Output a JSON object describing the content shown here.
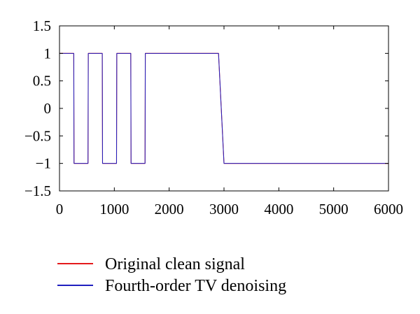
{
  "chart_data": {
    "type": "line",
    "title": "",
    "xlabel": "",
    "ylabel": "",
    "xlim": [
      0,
      6000
    ],
    "ylim": [
      -1.5,
      1.5
    ],
    "x_ticks": [
      0,
      1000,
      2000,
      3000,
      4000,
      5000,
      6000
    ],
    "x_tick_labels": [
      "0",
      "1000",
      "2000",
      "3000",
      "4000",
      "5000",
      "6000"
    ],
    "y_ticks": [
      1.5,
      1,
      0.5,
      0,
      -0.5,
      -1,
      -1.5
    ],
    "y_tick_labels": [
      "1.5",
      "1",
      "0.5",
      "0",
      "−0.5",
      "−1",
      "−1.5"
    ],
    "grid": false,
    "legend_position": "bottom",
    "series": [
      {
        "name": "Original clean signal",
        "color": "#e41a1c",
        "x": [
          0,
          260,
          265,
          520,
          525,
          780,
          785,
          1040,
          1045,
          1300,
          1305,
          1560,
          1565,
          1860,
          2000,
          2100,
          2200,
          2330,
          2450,
          2550,
          2650,
          2800,
          2900,
          3000,
          3100,
          3290,
          3400,
          3500,
          3600,
          3750,
          3900,
          4000,
          4100,
          4200,
          4300,
          4400,
          4410,
          4700,
          5000,
          5040,
          5050,
          5350,
          5660,
          5680,
          5690,
          5800,
          5900,
          6000
        ],
        "y": [
          1,
          1,
          -1,
          -1,
          1,
          1,
          -1,
          -1,
          1,
          1,
          -1,
          -1,
          1,
          1,
          1,
          1,
          1,
          1,
          1,
          1,
          1,
          1,
          1,
          -1,
          -1,
          -1,
          -1,
          -1,
          -1,
          -1,
          -1,
          -1,
          -1,
          -1,
          -1,
          -1,
          -1,
          -1,
          -1,
          -1,
          -1,
          -1,
          -1,
          -1,
          -1,
          -1,
          -1,
          -1
        ]
      },
      {
        "name": "Fourth-order TV denoising",
        "color": "#1f1fbf",
        "x": [
          0,
          260,
          265,
          520,
          525,
          780,
          785,
          1040,
          1045,
          1300,
          1305,
          1560,
          1565,
          1860,
          2000,
          2100,
          2200,
          2330,
          2450,
          2550,
          2650,
          2800,
          2900,
          3000,
          3100,
          3290,
          3400,
          3500,
          3600,
          3750,
          3900,
          4000,
          4100,
          4200,
          4300,
          4400,
          4410,
          4700,
          5000,
          5040,
          5050,
          5350,
          5660,
          5680,
          5690,
          5800,
          5900,
          6000
        ],
        "y": [
          1,
          1,
          -1,
          -1,
          1,
          1,
          -1,
          -1,
          1,
          1,
          -1,
          -1,
          1,
          1,
          1,
          1,
          1,
          1,
          1,
          1,
          1,
          1,
          1,
          -1,
          -1,
          -1,
          -1,
          -1,
          -1,
          -1,
          -1,
          -1,
          -1,
          -1,
          -1,
          -1,
          -1,
          -1,
          -1,
          -1,
          -1,
          -1,
          -1,
          -1,
          -1,
          -1,
          -1,
          -1
        ]
      }
    ]
  }
}
